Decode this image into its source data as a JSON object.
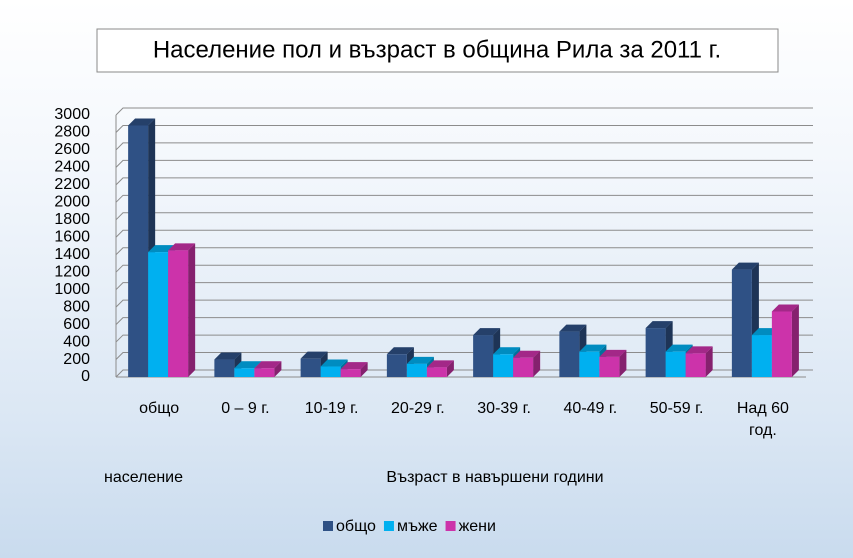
{
  "chart_data": {
    "type": "bar3d",
    "title": "Население пол и възраст в община Рила за 2011 г.",
    "x_label_left": "население",
    "x_label": "Възраст в навършени години",
    "categories": [
      "общо",
      "0 – 9 г.",
      "10-19 г.",
      "20-29 г.",
      "30-39 г.",
      "40-49 г.",
      "50-59 г.",
      "Над 60 год."
    ],
    "series": [
      {
        "name": "общо",
        "color": "#2f5185",
        "values": [
          2880,
          200,
          210,
          260,
          480,
          520,
          560,
          1230
        ]
      },
      {
        "name": "мъже",
        "color": "#00b0f0",
        "values": [
          1430,
          100,
          120,
          150,
          260,
          290,
          290,
          480
        ]
      },
      {
        "name": "жени",
        "color": "#cc33aa",
        "values": [
          1450,
          100,
          90,
          110,
          220,
          230,
          270,
          750
        ]
      }
    ],
    "ylim": [
      0,
      3000
    ],
    "yticks": [
      0,
      200,
      400,
      600,
      800,
      1000,
      1200,
      1400,
      1600,
      1800,
      2000,
      2200,
      2400,
      2600,
      2800,
      3000
    ],
    "grid": true,
    "legend": "bottom"
  }
}
